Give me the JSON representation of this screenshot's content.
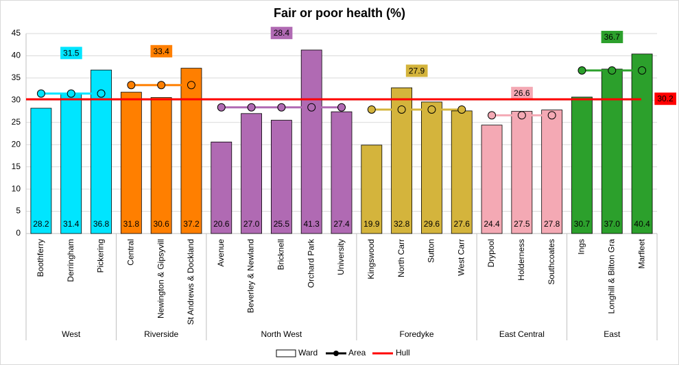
{
  "chart_data": {
    "type": "bar",
    "title": "Fair or poor health (%)",
    "ylim": [
      0,
      45
    ],
    "yticks": [
      0,
      5,
      10,
      15,
      20,
      25,
      30,
      35,
      40,
      45
    ],
    "grid": true,
    "legend": [
      "Ward",
      "Area"
    ],
    "groups": [
      {
        "name": "West",
        "color": "#00e5ff",
        "area_value": 31.5,
        "categories": [
          "Boothferry",
          "Derringham",
          "Pickering"
        ],
        "values": [
          28.2,
          31.4,
          36.8
        ],
        "value_labels": [
          "28.2",
          "31.4",
          "36.8"
        ]
      },
      {
        "name": "Riverside",
        "color": "#ff7f00",
        "area_value": 33.4,
        "categories": [
          "Central",
          "Newington & Gipsyvill",
          "St Andrews & Dockland"
        ],
        "values": [
          31.8,
          30.6,
          37.2
        ],
        "value_labels": [
          "31.8",
          "30.6",
          "37.2"
        ]
      },
      {
        "name": "North West",
        "color": "#b06ab3",
        "area_value": 28.4,
        "categories": [
          "Avenue",
          "Beverley & Newland",
          "Bricknell",
          "Orchard Park",
          "University"
        ],
        "values": [
          20.6,
          27.0,
          25.5,
          41.3,
          27.4
        ],
        "value_labels": [
          "20.6",
          "27.0",
          "25.5",
          "41.3",
          "27.4"
        ]
      },
      {
        "name": "Foredyke",
        "color": "#d4b43c",
        "area_value": 27.9,
        "categories": [
          "Kingswood",
          "North Carr",
          "Sutton",
          "West Carr"
        ],
        "values": [
          19.9,
          32.8,
          29.6,
          27.6
        ],
        "value_labels": [
          "19.9",
          "32.8",
          "29.6",
          "27.6"
        ]
      },
      {
        "name": "East Central",
        "color": "#f4a9b4",
        "area_value": 26.6,
        "categories": [
          "Drypool",
          "Holderness",
          "Southcoates"
        ],
        "values": [
          24.4,
          27.5,
          27.8
        ],
        "value_labels": [
          "24.4",
          "27.5",
          "27.8"
        ]
      },
      {
        "name": "East",
        "color": "#2ca02c",
        "area_value": 36.7,
        "categories": [
          "Ings",
          "Longhill & Bilton Gra",
          "Marfleet"
        ],
        "values": [
          30.7,
          37.0,
          40.4
        ],
        "value_labels": [
          "30.7",
          "37.0",
          "40.4"
        ]
      }
    ],
    "hull": {
      "name": "Hull",
      "value": 30.2,
      "color": "#ff0000"
    }
  }
}
